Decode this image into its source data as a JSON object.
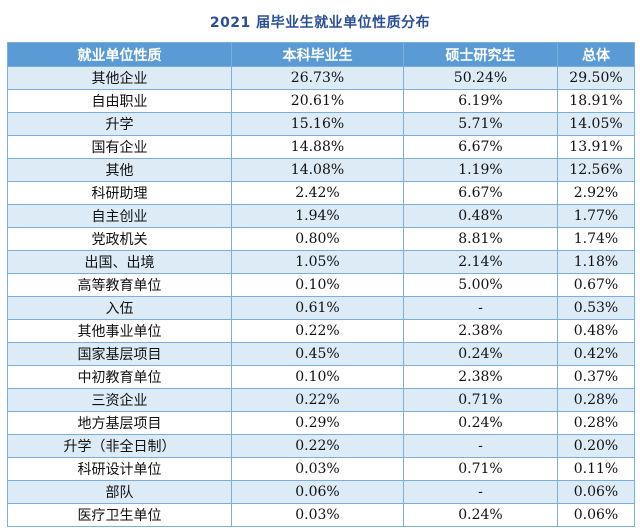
{
  "title": "2021 届毕业生就业单位性质分布",
  "table": {
    "headers": [
      "就业单位性质",
      "本科毕业生",
      "硕士研究生",
      "总体"
    ],
    "rows": [
      [
        "其他企业",
        "26.73%",
        "50.24%",
        "29.50%"
      ],
      [
        "自由职业",
        "20.61%",
        "6.19%",
        "18.91%"
      ],
      [
        "升学",
        "15.16%",
        "5.71%",
        "14.05%"
      ],
      [
        "国有企业",
        "14.88%",
        "6.67%",
        "13.91%"
      ],
      [
        "其他",
        "14.08%",
        "1.19%",
        "12.56%"
      ],
      [
        "科研助理",
        "2.42%",
        "6.67%",
        "2.92%"
      ],
      [
        "自主创业",
        "1.94%",
        "0.48%",
        "1.77%"
      ],
      [
        "党政机关",
        "0.80%",
        "8.81%",
        "1.74%"
      ],
      [
        "出国、出境",
        "1.05%",
        "2.14%",
        "1.18%"
      ],
      [
        "高等教育单位",
        "0.10%",
        "5.00%",
        "0.67%"
      ],
      [
        "入伍",
        "0.61%",
        "-",
        "0.53%"
      ],
      [
        "其他事业单位",
        "0.22%",
        "2.38%",
        "0.48%"
      ],
      [
        "国家基层项目",
        "0.45%",
        "0.24%",
        "0.42%"
      ],
      [
        "中初教育单位",
        "0.10%",
        "2.38%",
        "0.37%"
      ],
      [
        "三资企业",
        "0.22%",
        "0.71%",
        "0.28%"
      ],
      [
        "地方基层项目",
        "0.29%",
        "0.24%",
        "0.28%"
      ],
      [
        "升学（非全日制）",
        "0.22%",
        "-",
        "0.20%"
      ],
      [
        "科研设计单位",
        "0.03%",
        "0.71%",
        "0.11%"
      ],
      [
        "部队",
        "0.06%",
        "-",
        "0.06%"
      ],
      [
        "医疗卫生单位",
        "0.03%",
        "0.24%",
        "0.06%"
      ]
    ]
  },
  "colors": {
    "title": "#2b4f97",
    "header_bg": "#5b9bd5",
    "stripe_bg": "#ddebf7",
    "border": "#7aaedc"
  }
}
